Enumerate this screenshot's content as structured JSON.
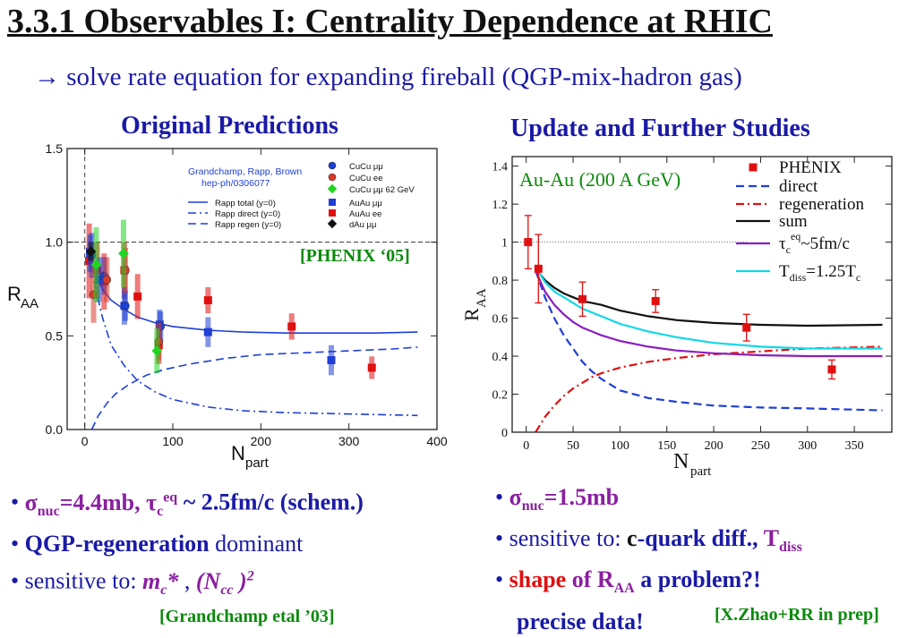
{
  "slide": {
    "title": "3.3.1 Observables I: Centrality Dependence at RHIC",
    "subtitle": "→ solve rate equation for expanding fireball (QGP-mix-hadron gas)",
    "left_heading": "Original Predictions",
    "right_heading": "Update and Further Studies",
    "left_bullets": {
      "b1_sigma": "σ",
      "b1_sub": "nuc",
      "b1_val": "=4.4mb, τ",
      "b1_sub2": "c",
      "b1_sup2": "eq",
      "b1_rest": " ~ 2.5fm/c (schem.)",
      "b2_bold": "QGP-regeneration",
      "b2_rest": " dominant",
      "b3_pre": "sensitive to:  ",
      "b3_m": "m",
      "b3_msub": "c",
      "b3_mrest": "* ",
      "b3_comma": ", ",
      "b3_n": "(N",
      "b3_nsub": "cc",
      "b3_nrest": " )",
      "b3_sup": "2"
    },
    "right_bullets": {
      "b1_sigma": "σ",
      "b1_sub": "nuc",
      "b1_rest": "=1.5mb",
      "b2_pre": "sensitive to: ",
      "b2_c": "c",
      "b2_quark": "-quark diff., ",
      "b2_T": "T",
      "b2_Tsub": "diss",
      "b3_shape": "shape",
      "b3_of": " of R",
      "b3_sub": "AA",
      "b3_rest": " a problem?!",
      "b4": "precise data!"
    },
    "ref_left": "[Grandchamp etal ’03]",
    "ref_right": "[X.Zhao+RR in prep]"
  },
  "chart_data": [
    {
      "type": "scatter",
      "xlabel": "N",
      "xlabel_sub": "part",
      "ylabel": "R",
      "ylabel_sub": "AA",
      "xlim": [
        -20,
        400
      ],
      "ylim": [
        0,
        1.5
      ],
      "xticks": [
        "0",
        "100",
        "200",
        "300",
        "400"
      ],
      "xtick_values": [
        0,
        100,
        200,
        300,
        400
      ],
      "yticks": [
        "0.0",
        "0.5",
        "1.0",
        "1.5"
      ],
      "ytick_values": [
        0,
        0.5,
        1.0,
        1.5
      ],
      "ref_line_y": 1.0,
      "annotation": "[PHENIX ‘05]",
      "inset_line1": "Grandchamp, Rapp, Brown",
      "inset_line2": "hep-ph/0306077",
      "legend": [
        {
          "label": "CuCu μμ",
          "marker": "circle",
          "color": "#1f3fd6"
        },
        {
          "label": "CuCu ee",
          "marker": "circle",
          "color": "#d93b2b"
        },
        {
          "label": "CuCu μμ 62 GeV",
          "marker": "diamond",
          "color": "#22d422"
        },
        {
          "label": "Rapp total (y=0)",
          "marker": "line-solid",
          "color": "#1f3fd6"
        },
        {
          "label": "Rapp direct (y=0)",
          "marker": "line-dashdot",
          "color": "#1f3fd6"
        },
        {
          "label": "Rapp regen (y=0)",
          "marker": "line-dashed",
          "color": "#1f3fd6"
        },
        {
          "label": "AuAu μμ",
          "marker": "square",
          "color": "#1f3fd6"
        },
        {
          "label": "AuAu ee",
          "marker": "square",
          "color": "#e01010"
        },
        {
          "label": "dAu μμ",
          "marker": "diamond",
          "color": "#111111"
        }
      ],
      "series": [
        {
          "name": "AuAu ee",
          "marker": "square",
          "color": "#e01010",
          "points": [
            [
              5,
              0.9
            ],
            [
              14,
              0.85
            ],
            [
              22,
              0.79
            ],
            [
              45,
              0.85
            ],
            [
              60,
              0.71
            ],
            [
              84,
              0.45
            ],
            [
              140,
              0.69
            ],
            [
              235,
              0.55
            ],
            [
              326,
              0.33
            ]
          ],
          "err": [
            0.2,
            0.15,
            0.15,
            0.15,
            0.12,
            0.1,
            0.07,
            0.07,
            0.06
          ]
        },
        {
          "name": "AuAu μμ",
          "marker": "square",
          "color": "#1f3fd6",
          "points": [
            [
              6,
              0.94
            ],
            [
              16,
              0.8
            ],
            [
              45,
              0.66
            ],
            [
              85,
              0.56
            ],
            [
              140,
              0.52
            ],
            [
              280,
              0.37
            ]
          ],
          "err": [
            0.1,
            0.12,
            0.1,
            0.08,
            0.08,
            0.08
          ]
        },
        {
          "name": "CuCu μμ",
          "marker": "circle",
          "color": "#1f3fd6",
          "points": [
            [
              8,
              0.93
            ],
            [
              22,
              0.82
            ],
            [
              46,
              0.66
            ],
            [
              86,
              0.55
            ]
          ],
          "err": [
            0.12,
            0.1,
            0.08,
            0.08
          ]
        },
        {
          "name": "CuCu ee",
          "marker": "circle",
          "color": "#d93b2b",
          "points": [
            [
              10,
              0.72
            ],
            [
              25,
              0.8
            ],
            [
              46,
              0.85
            ],
            [
              84,
              0.47
            ]
          ],
          "err": [
            0.15,
            0.12,
            0.12,
            0.1
          ]
        },
        {
          "name": "CuCu μμ 62 GeV",
          "marker": "diamond",
          "color": "#22d422",
          "points": [
            [
              13,
              0.88
            ],
            [
              44,
              0.94
            ],
            [
              82,
              0.42
            ]
          ],
          "err": [
            0.2,
            0.18,
            0.12
          ]
        },
        {
          "name": "dAu μμ",
          "marker": "diamond",
          "color": "#111111",
          "points": [
            [
              7,
              0.95
            ]
          ],
          "err": [
            0.05
          ]
        }
      ],
      "curves": [
        {
          "name": "Rapp total (y=0)",
          "style": "solid",
          "color": "#1f3fd6",
          "x": [
            2,
            10,
            20,
            30,
            45,
            60,
            80,
            100,
            140,
            180,
            230,
            280,
            330,
            378
          ],
          "y": [
            0.97,
            0.86,
            0.75,
            0.69,
            0.64,
            0.6,
            0.57,
            0.55,
            0.53,
            0.52,
            0.515,
            0.515,
            0.515,
            0.52
          ]
        },
        {
          "name": "Rapp direct (y=0)",
          "style": "dashdot",
          "color": "#1f3fd6",
          "x": [
            2,
            10,
            20,
            30,
            45,
            60,
            80,
            100,
            140,
            180,
            230,
            280,
            330,
            378
          ],
          "y": [
            0.97,
            0.8,
            0.6,
            0.45,
            0.34,
            0.26,
            0.2,
            0.16,
            0.12,
            0.1,
            0.09,
            0.085,
            0.08,
            0.075
          ]
        },
        {
          "name": "Rapp regen (y=0)",
          "style": "dashed",
          "color": "#1f3fd6",
          "x": [
            8,
            15,
            25,
            35,
            50,
            70,
            90,
            120,
            160,
            200,
            250,
            300,
            350,
            378
          ],
          "y": [
            0.0,
            0.07,
            0.14,
            0.19,
            0.24,
            0.29,
            0.32,
            0.35,
            0.38,
            0.4,
            0.41,
            0.42,
            0.43,
            0.44
          ]
        }
      ]
    },
    {
      "type": "scatter",
      "xlabel": "N",
      "xlabel_sub": "part",
      "ylabel": "R",
      "ylabel_sub": "AA",
      "xlim": [
        -15,
        390
      ],
      "ylim": [
        0,
        1.45
      ],
      "xticks": [
        "0",
        "50",
        "100",
        "150",
        "200",
        "250",
        "300",
        "350"
      ],
      "xtick_values": [
        0,
        50,
        100,
        150,
        200,
        250,
        300,
        350
      ],
      "yticks": [
        "0",
        "0.2",
        "0.4",
        "0.6",
        "0.8",
        "1",
        "1.2",
        "1.4"
      ],
      "ytick_values": [
        0,
        0.2,
        0.4,
        0.6,
        0.8,
        1.0,
        1.2,
        1.4
      ],
      "ref_line_y": 1.0,
      "annotation": "Au-Au (200 A GeV)",
      "legend": [
        {
          "label": "PHENIX",
          "marker": "square",
          "color": "#e01010"
        },
        {
          "label": "direct",
          "marker": "line-dashed",
          "color": "#1f3fd6"
        },
        {
          "label": "regeneration",
          "marker": "line-dashdot",
          "color": "#e01010"
        },
        {
          "label": "sum",
          "marker": "line-solid",
          "color": "#111111"
        },
        {
          "label": "τ",
          "label_sub": "c",
          "label_sup": "eq",
          "label_rest": "~5fm/c",
          "marker": "line-solid",
          "color": "#8a1fc0"
        },
        {
          "label": "T",
          "label_sub": "diss",
          "label_rest": "=1.25T",
          "label_sub2": "c",
          "marker": "line-solid",
          "color": "#14d8e8"
        }
      ],
      "series": [
        {
          "name": "PHENIX",
          "marker": "square",
          "color": "#e01010",
          "points": [
            [
              2,
              1.0
            ],
            [
              13,
              0.86
            ],
            [
              60,
              0.7
            ],
            [
              138,
              0.69
            ],
            [
              235,
              0.55
            ],
            [
              326,
              0.33
            ]
          ],
          "err": [
            0.14,
            0.18,
            0.09,
            0.06,
            0.07,
            0.05
          ]
        }
      ],
      "curves": [
        {
          "name": "direct",
          "style": "dashed",
          "color": "#1f3fd6",
          "x": [
            10,
            20,
            30,
            40,
            50,
            60,
            70,
            80,
            100,
            130,
            160,
            200,
            250,
            300,
            380
          ],
          "y": [
            0.85,
            0.71,
            0.6,
            0.51,
            0.44,
            0.37,
            0.32,
            0.28,
            0.22,
            0.18,
            0.16,
            0.14,
            0.13,
            0.125,
            0.115
          ]
        },
        {
          "name": "regeneration",
          "style": "dashdot",
          "color": "#e01010",
          "x": [
            10,
            20,
            30,
            40,
            50,
            60,
            70,
            80,
            100,
            130,
            160,
            200,
            250,
            300,
            380
          ],
          "y": [
            0.0,
            0.08,
            0.14,
            0.19,
            0.23,
            0.26,
            0.29,
            0.31,
            0.34,
            0.37,
            0.39,
            0.41,
            0.425,
            0.44,
            0.45
          ]
        },
        {
          "name": "sum",
          "style": "solid",
          "color": "#111111",
          "x": [
            10,
            20,
            30,
            40,
            50,
            60,
            70,
            80,
            100,
            130,
            160,
            200,
            250,
            300,
            380
          ],
          "y": [
            0.86,
            0.8,
            0.76,
            0.73,
            0.71,
            0.69,
            0.68,
            0.67,
            0.64,
            0.61,
            0.59,
            0.575,
            0.565,
            0.56,
            0.565
          ]
        },
        {
          "name": "τc eq~5fm/c",
          "style": "solid",
          "color": "#8a1fc0",
          "x": [
            10,
            20,
            30,
            40,
            50,
            60,
            70,
            80,
            100,
            130,
            160,
            200,
            250,
            300,
            380
          ],
          "y": [
            0.85,
            0.74,
            0.67,
            0.62,
            0.58,
            0.55,
            0.53,
            0.51,
            0.48,
            0.45,
            0.43,
            0.415,
            0.405,
            0.4,
            0.4
          ]
        },
        {
          "name": "Tdiss=1.25Tc",
          "style": "solid",
          "color": "#14d8e8",
          "x": [
            10,
            20,
            30,
            40,
            50,
            60,
            70,
            80,
            100,
            130,
            160,
            200,
            250,
            300,
            380
          ],
          "y": [
            0.87,
            0.79,
            0.74,
            0.71,
            0.68,
            0.65,
            0.63,
            0.61,
            0.57,
            0.53,
            0.5,
            0.47,
            0.45,
            0.44,
            0.44
          ]
        }
      ]
    }
  ]
}
